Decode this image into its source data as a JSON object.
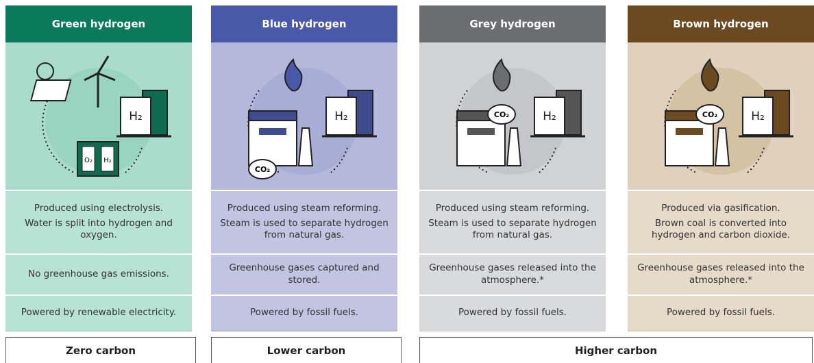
{
  "columns": [
    {
      "title": "Green hydrogen",
      "production": [
        "Produced using electrolysis.",
        "Water is split into hydrogen and oxygen."
      ],
      "emissions": "No greenhouse gas emissions.",
      "power": "Powered by renewable electricity.",
      "icon_labels": [
        "H₂",
        "O₂",
        "H₂"
      ]
    },
    {
      "title": "Blue hydrogen",
      "production": [
        "Produced using steam reforming.",
        "Steam is used to separate hydrogen from natural gas."
      ],
      "emissions": "Greenhouse gases captured and stored.",
      "power": "Powered by fossil fuels.",
      "icon_labels": [
        "H₂",
        "CO₂"
      ]
    },
    {
      "title": "Grey hydrogen",
      "production": [
        "Produced using steam reforming.",
        "Steam is used to separate hydrogen from natural gas."
      ],
      "emissions": "Greenhouse gases released into the atmosphere.*",
      "power": "Powered by fossil fuels.",
      "icon_labels": [
        "H₂",
        "CO₂"
      ]
    },
    {
      "title": "Brown hydrogen",
      "production": [
        "Produced via gasification.",
        "Brown coal is converted into hydrogen and carbon dioxide."
      ],
      "emissions": "Greenhouse gases released into the atmosphere.*",
      "power": "Powered by fossil fuels.",
      "icon_labels": [
        "H₂",
        "CO₂"
      ]
    }
  ],
  "footer": [
    "Zero carbon",
    "Lower carbon",
    "Higher carbon"
  ]
}
